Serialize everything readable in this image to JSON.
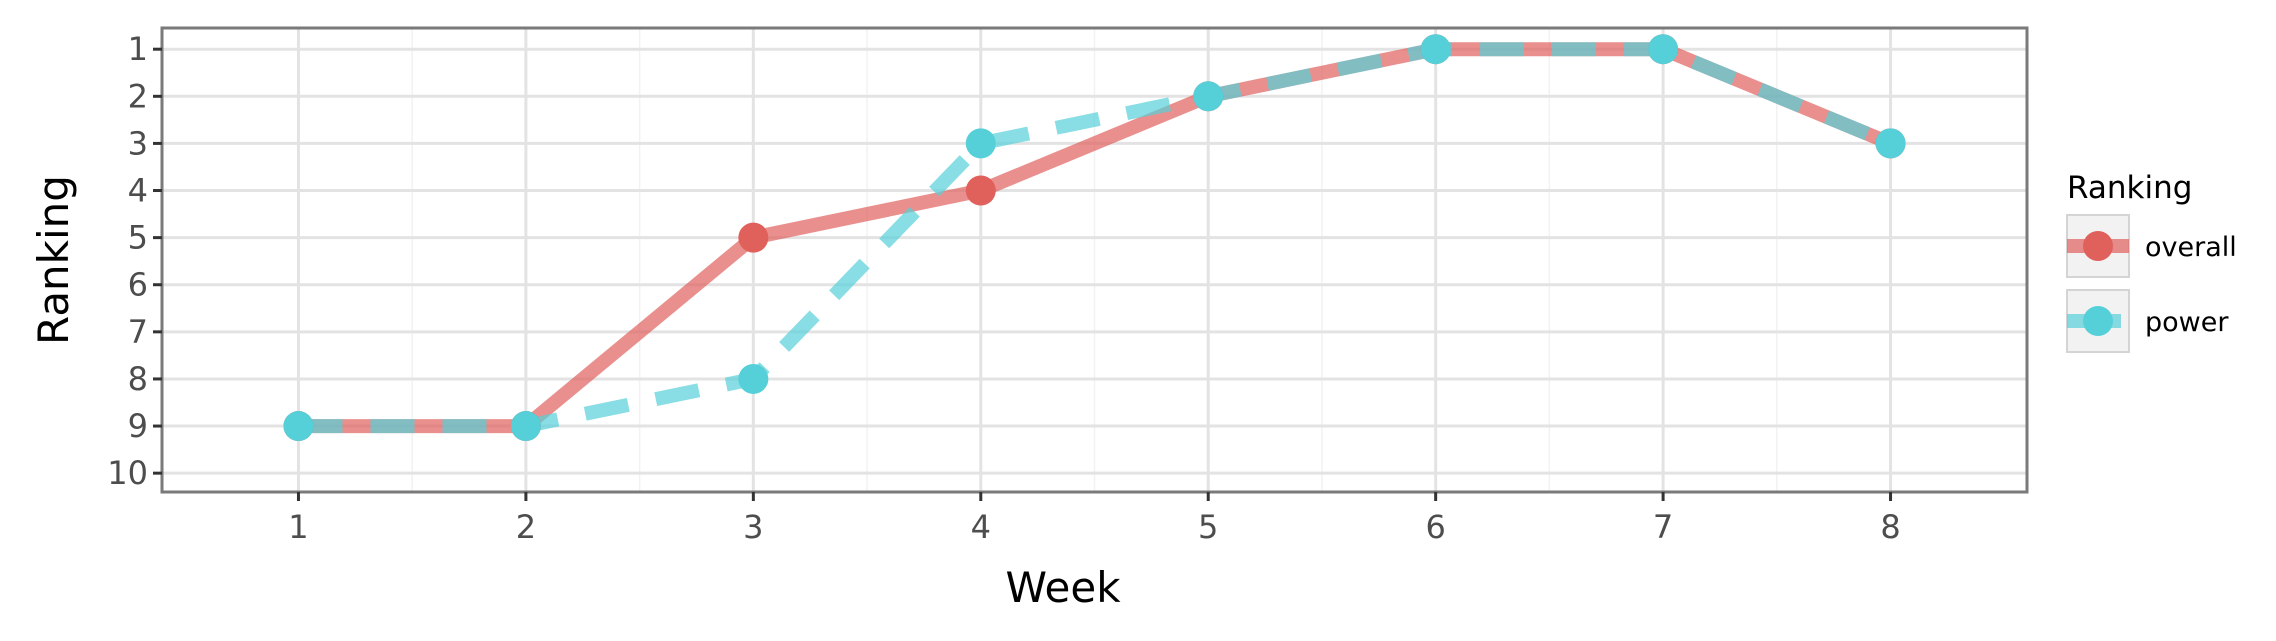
{
  "chart_data": {
    "type": "line",
    "xlabel": "Week",
    "ylabel": "Ranking",
    "x": [
      1,
      2,
      3,
      4,
      5,
      6,
      7,
      8
    ],
    "xlim": [
      0.4,
      8.6
    ],
    "ylim": [
      10.4,
      0.55
    ],
    "y_reversed": true,
    "yticks": [
      1,
      2,
      3,
      4,
      5,
      6,
      7,
      8,
      9,
      10
    ],
    "grid": true,
    "legend_title": "Ranking",
    "legend_position": "right",
    "series": [
      {
        "name": "overall",
        "values": [
          9,
          9,
          5,
          4,
          2,
          1,
          1,
          3
        ],
        "color": "#e0605c",
        "style": "solid"
      },
      {
        "name": "power",
        "values": [
          9,
          9,
          8,
          3,
          2,
          1,
          1,
          3
        ],
        "color": "#55d0d9",
        "style": "dashed"
      }
    ]
  }
}
